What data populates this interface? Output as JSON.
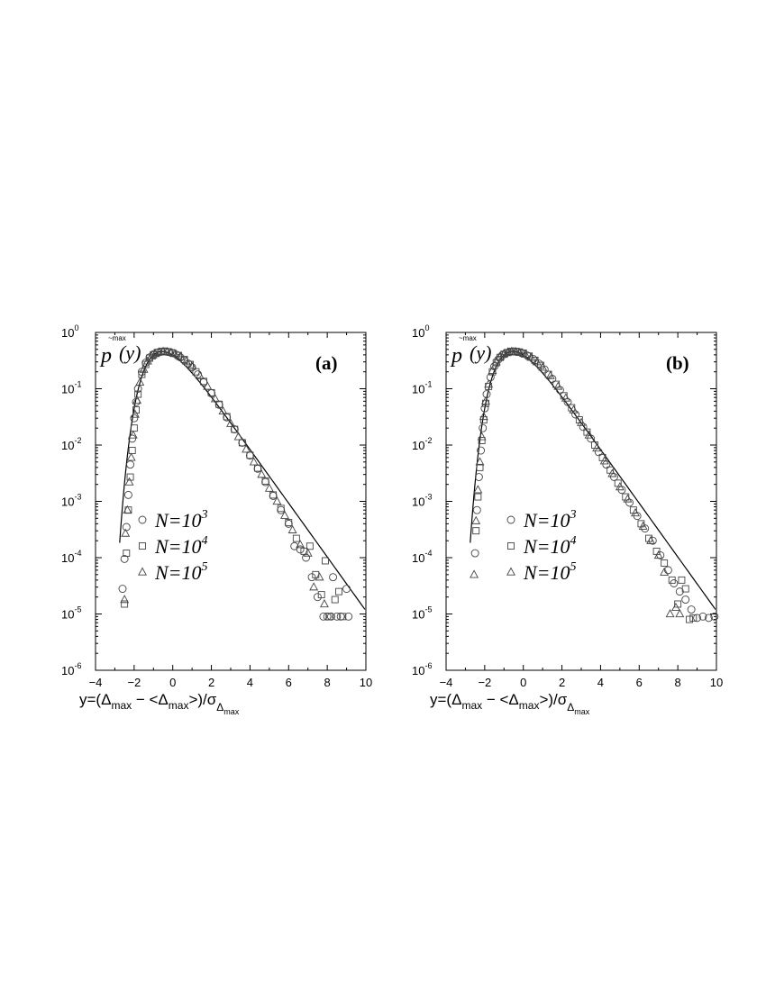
{
  "chart_data": [
    {
      "type": "scatter",
      "panel_label": "(a)",
      "y_axis_label": {
        "base": "p",
        "superscript": "~max",
        "argument": "(y)"
      },
      "xlabel": "y=(Δmax − <Δmax>)/σΔmax",
      "xlim": [
        -4,
        10
      ],
      "ylim": [
        1e-06,
        1
      ],
      "yscale": "log",
      "xticks": [
        "−4",
        "−2",
        "0",
        "2",
        "4",
        "6",
        "8",
        "10"
      ],
      "yticks": [
        "10^0",
        "10^-1",
        "10^-2",
        "10^-3",
        "10^-4",
        "10^-5",
        "10^-6"
      ],
      "legend_position": "center-left",
      "series": [
        {
          "name": "N=10^3",
          "marker": "circle",
          "points": [
            [
              -2.6,
              2.8e-05
            ],
            [
              -2.5,
              9.5e-05
            ],
            [
              -2.4,
              0.00035
            ],
            [
              -2.3,
              0.0013
            ],
            [
              -2.2,
              0.0045
            ],
            [
              -2.1,
              0.013
            ],
            [
              -2.0,
              0.03
            ],
            [
              -1.9,
              0.058
            ],
            [
              -1.8,
              0.1
            ],
            [
              -1.6,
              0.2
            ],
            [
              -1.4,
              0.29
            ],
            [
              -1.2,
              0.36
            ],
            [
              -1.0,
              0.41
            ],
            [
              -0.8,
              0.44
            ],
            [
              -0.6,
              0.455
            ],
            [
              -0.4,
              0.46
            ],
            [
              -0.2,
              0.45
            ],
            [
              0.0,
              0.43
            ],
            [
              0.2,
              0.4
            ],
            [
              0.4,
              0.36
            ],
            [
              0.6,
              0.32
            ],
            [
              0.8,
              0.28
            ],
            [
              1.0,
              0.24
            ],
            [
              1.3,
              0.18
            ],
            [
              1.6,
              0.13
            ],
            [
              2.0,
              0.083
            ],
            [
              2.4,
              0.052
            ],
            [
              2.8,
              0.031
            ],
            [
              3.2,
              0.019
            ],
            [
              3.6,
              0.011
            ],
            [
              4.0,
              0.0065
            ],
            [
              4.4,
              0.0038
            ],
            [
              4.8,
              0.0022
            ],
            [
              5.2,
              0.00125
            ],
            [
              5.6,
              0.0007
            ],
            [
              6.0,
              0.0004
            ],
            [
              6.3,
              0.00016
            ],
            [
              6.6,
              0.00014
            ],
            [
              6.9,
              0.0001
            ],
            [
              7.2,
              4.5e-05
            ],
            [
              7.5,
              2e-05
            ],
            [
              7.8,
              9e-06
            ],
            [
              8.0,
              9e-06
            ],
            [
              8.2,
              9e-06
            ],
            [
              8.3,
              4.5e-05
            ],
            [
              8.5,
              9e-06
            ],
            [
              8.7,
              9e-06
            ],
            [
              9.0,
              2.8e-05
            ],
            [
              9.1,
              9e-06
            ]
          ]
        },
        {
          "name": "N=10^4",
          "marker": "square",
          "points": [
            [
              -2.5,
              1.5e-05
            ],
            [
              -2.4,
              0.00012
            ],
            [
              -2.3,
              0.0007
            ],
            [
              -2.2,
              0.0027
            ],
            [
              -2.1,
              0.008
            ],
            [
              -2.0,
              0.02
            ],
            [
              -1.9,
              0.042
            ],
            [
              -1.8,
              0.08
            ],
            [
              -1.6,
              0.18
            ],
            [
              -1.4,
              0.27
            ],
            [
              -1.2,
              0.35
            ],
            [
              -1.0,
              0.4
            ],
            [
              -0.8,
              0.44
            ],
            [
              -0.6,
              0.455
            ],
            [
              -0.4,
              0.46
            ],
            [
              -0.2,
              0.45
            ],
            [
              0.0,
              0.43
            ],
            [
              0.3,
              0.39
            ],
            [
              0.6,
              0.33
            ],
            [
              0.9,
              0.27
            ],
            [
              1.2,
              0.2
            ],
            [
              1.6,
              0.135
            ],
            [
              2.0,
              0.085
            ],
            [
              2.4,
              0.053
            ],
            [
              2.8,
              0.032
            ],
            [
              3.2,
              0.019
            ],
            [
              3.6,
              0.011
            ],
            [
              4.0,
              0.0066
            ],
            [
              4.4,
              0.0039
            ],
            [
              4.8,
              0.0023
            ],
            [
              5.2,
              0.0013
            ],
            [
              5.6,
              0.00075
            ],
            [
              6.0,
              0.00042
            ],
            [
              6.4,
              0.00022
            ],
            [
              6.8,
              0.00013
            ],
            [
              7.1,
              0.00016
            ],
            [
              7.4,
              5e-05
            ],
            [
              7.7,
              2.2e-05
            ],
            [
              7.9,
              8.8e-05
            ],
            [
              8.1,
              9e-06
            ],
            [
              8.4,
              1.8e-05
            ],
            [
              8.6,
              2.5e-05
            ],
            [
              8.8,
              9e-06
            ]
          ]
        },
        {
          "name": "N=10^5",
          "marker": "triangle",
          "points": [
            [
              -2.5,
              1.8e-05
            ],
            [
              -2.45,
              0.00027
            ],
            [
              -2.35,
              0.0007
            ],
            [
              -2.25,
              0.0022
            ],
            [
              -2.15,
              0.006
            ],
            [
              -2.05,
              0.015
            ],
            [
              -1.95,
              0.035
            ],
            [
              -1.85,
              0.062
            ],
            [
              -1.7,
              0.13
            ],
            [
              -1.5,
              0.22
            ],
            [
              -1.3,
              0.31
            ],
            [
              -1.1,
              0.38
            ],
            [
              -0.9,
              0.42
            ],
            [
              -0.7,
              0.45
            ],
            [
              -0.5,
              0.46
            ],
            [
              -0.3,
              0.455
            ],
            [
              -0.1,
              0.44
            ],
            [
              0.1,
              0.42
            ],
            [
              0.4,
              0.37
            ],
            [
              0.7,
              0.31
            ],
            [
              1.0,
              0.25
            ],
            [
              1.4,
              0.17
            ],
            [
              1.8,
              0.11
            ],
            [
              2.2,
              0.066
            ],
            [
              2.6,
              0.04
            ],
            [
              3.0,
              0.024
            ],
            [
              3.4,
              0.014
            ],
            [
              3.8,
              0.0084
            ],
            [
              4.2,
              0.005
            ],
            [
              4.6,
              0.003
            ],
            [
              5.0,
              0.0017
            ],
            [
              5.4,
              0.001
            ],
            [
              5.8,
              0.00056
            ],
            [
              6.2,
              0.00031
            ],
            [
              6.6,
              0.00017
            ],
            [
              7.0,
              0.00012
            ],
            [
              7.3,
              3e-05
            ],
            [
              7.6,
              4.5e-05
            ],
            [
              7.85,
              1.5e-05
            ]
          ]
        }
      ],
      "fit_curve": "line"
    },
    {
      "type": "scatter",
      "panel_label": "(b)",
      "y_axis_label": {
        "base": "p",
        "superscript": "~max",
        "argument": "(y)"
      },
      "xlabel": "y=(Δmax − <Δmax>)/σΔmax",
      "xlim": [
        -4,
        10
      ],
      "ylim": [
        1e-06,
        1
      ],
      "yscale": "log",
      "xticks": [
        "−4",
        "−2",
        "0",
        "2",
        "4",
        "6",
        "8",
        "10"
      ],
      "yticks": [
        "10^0",
        "10^-1",
        "10^-2",
        "10^-3",
        "10^-4",
        "10^-5",
        "10^-6"
      ],
      "legend_position": "center",
      "series": [
        {
          "name": "N=10^3",
          "marker": "circle",
          "points": [
            [
              -2.5,
              0.00012
            ],
            [
              -2.4,
              0.0007
            ],
            [
              -2.3,
              0.0027
            ],
            [
              -2.2,
              0.008
            ],
            [
              -2.1,
              0.02
            ],
            [
              -2.0,
              0.045
            ],
            [
              -1.9,
              0.08
            ],
            [
              -1.7,
              0.16
            ],
            [
              -1.5,
              0.25
            ],
            [
              -1.3,
              0.33
            ],
            [
              -1.1,
              0.39
            ],
            [
              -0.9,
              0.43
            ],
            [
              -0.7,
              0.455
            ],
            [
              -0.5,
              0.46
            ],
            [
              -0.3,
              0.45
            ],
            [
              -0.1,
              0.43
            ],
            [
              0.2,
              0.39
            ],
            [
              0.5,
              0.34
            ],
            [
              0.8,
              0.28
            ],
            [
              1.1,
              0.22
            ],
            [
              1.5,
              0.15
            ],
            [
              1.9,
              0.095
            ],
            [
              2.3,
              0.058
            ],
            [
              2.7,
              0.035
            ],
            [
              3.1,
              0.021
            ],
            [
              3.5,
              0.013
            ],
            [
              3.9,
              0.0075
            ],
            [
              4.3,
              0.0045
            ],
            [
              4.7,
              0.0027
            ],
            [
              5.1,
              0.0016
            ],
            [
              5.5,
              0.00095
            ],
            [
              5.9,
              0.00055
            ],
            [
              6.3,
              0.00033
            ],
            [
              6.7,
              0.0002
            ],
            [
              7.1,
              0.00011
            ],
            [
              7.5,
              6e-05
            ],
            [
              7.8,
              3.5e-05
            ],
            [
              8.1,
              2.5e-05
            ],
            [
              8.4,
              1.8e-05
            ],
            [
              8.7,
              1.2e-05
            ],
            [
              9.0,
              8.5e-06
            ],
            [
              9.3,
              9e-06
            ],
            [
              9.6,
              8.5e-06
            ],
            [
              9.9,
              9e-06
            ]
          ]
        },
        {
          "name": "N=10^4",
          "marker": "square",
          "points": [
            [
              -2.45,
              0.0003
            ],
            [
              -2.35,
              0.0012
            ],
            [
              -2.25,
              0.004
            ],
            [
              -2.15,
              0.012
            ],
            [
              -2.05,
              0.028
            ],
            [
              -1.95,
              0.055
            ],
            [
              -1.8,
              0.11
            ],
            [
              -1.6,
              0.2
            ],
            [
              -1.4,
              0.29
            ],
            [
              -1.2,
              0.36
            ],
            [
              -1.0,
              0.41
            ],
            [
              -0.8,
              0.44
            ],
            [
              -0.6,
              0.455
            ],
            [
              -0.4,
              0.46
            ],
            [
              -0.2,
              0.45
            ],
            [
              0.0,
              0.43
            ],
            [
              0.3,
              0.38
            ],
            [
              0.6,
              0.32
            ],
            [
              0.9,
              0.26
            ],
            [
              1.3,
              0.18
            ],
            [
              1.7,
              0.12
            ],
            [
              2.1,
              0.075
            ],
            [
              2.5,
              0.046
            ],
            [
              2.9,
              0.028
            ],
            [
              3.3,
              0.017
            ],
            [
              3.7,
              0.01
            ],
            [
              4.1,
              0.006
            ],
            [
              4.5,
              0.0036
            ],
            [
              4.9,
              0.0021
            ],
            [
              5.3,
              0.0012
            ],
            [
              5.7,
              0.0007
            ],
            [
              6.1,
              0.0004
            ],
            [
              6.5,
              0.00022
            ],
            [
              6.9,
              0.00013
            ],
            [
              7.3,
              8e-05
            ],
            [
              7.7,
              4e-05
            ],
            [
              8.0,
              1.5e-05
            ],
            [
              8.2,
              4e-05
            ],
            [
              8.4,
              2.8e-05
            ],
            [
              8.6,
              8e-06
            ],
            [
              8.8,
              8.5e-06
            ]
          ]
        },
        {
          "name": "N=10^5",
          "marker": "triangle",
          "points": [
            [
              -2.55,
              5e-05
            ],
            [
              -2.45,
              0.00045
            ],
            [
              -2.35,
              0.0016
            ],
            [
              -2.25,
              0.005
            ],
            [
              -2.15,
              0.014
            ],
            [
              -2.05,
              0.032
            ],
            [
              -1.95,
              0.06
            ],
            [
              -1.8,
              0.12
            ],
            [
              -1.6,
              0.21
            ],
            [
              -1.4,
              0.3
            ],
            [
              -1.2,
              0.37
            ],
            [
              -1.0,
              0.42
            ],
            [
              -0.8,
              0.45
            ],
            [
              -0.6,
              0.46
            ],
            [
              -0.4,
              0.455
            ],
            [
              -0.2,
              0.44
            ],
            [
              0.1,
              0.41
            ],
            [
              0.4,
              0.36
            ],
            [
              0.7,
              0.3
            ],
            [
              1.0,
              0.24
            ],
            [
              1.4,
              0.17
            ],
            [
              1.8,
              0.11
            ],
            [
              2.2,
              0.068
            ],
            [
              2.6,
              0.042
            ],
            [
              3.0,
              0.025
            ],
            [
              3.4,
              0.015
            ],
            [
              3.8,
              0.0088
            ],
            [
              4.2,
              0.0052
            ],
            [
              4.6,
              0.0031
            ],
            [
              5.0,
              0.0018
            ],
            [
              5.4,
              0.0011
            ],
            [
              5.8,
              0.00062
            ],
            [
              6.2,
              0.00036
            ],
            [
              6.6,
              0.0002
            ],
            [
              7.0,
              0.00011
            ],
            [
              7.3,
              5.5e-05
            ],
            [
              7.6,
              1e-05
            ],
            [
              7.9,
              1.3e-05
            ],
            [
              8.1,
              1e-05
            ]
          ]
        }
      ],
      "fit_curve": "line"
    }
  ]
}
